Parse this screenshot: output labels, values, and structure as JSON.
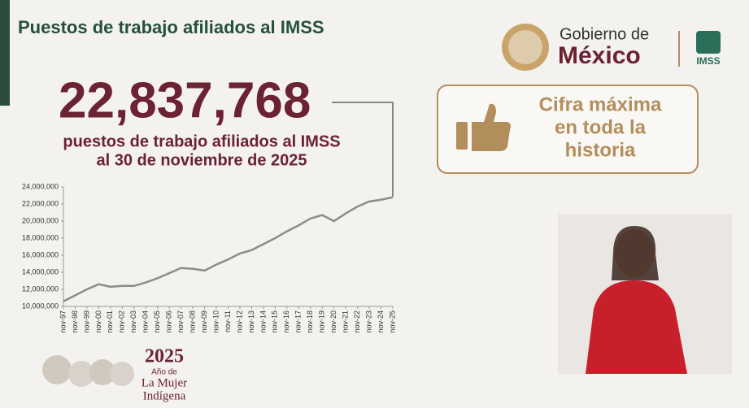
{
  "header": {
    "title": "Puestos de trabajo afiliados al IMSS"
  },
  "headline": {
    "number": "22,837,768",
    "line1": "puestos de trabajo afiliados al IMSS",
    "line2": "al 30 de noviembre de 2025"
  },
  "callout": {
    "line1": "Cifra máxima",
    "line2": "en toda la",
    "line3": "historia"
  },
  "logo": {
    "gobierno": "Gobierno de",
    "mexico": "México",
    "imss": "IMSS"
  },
  "footer": {
    "year": "2025",
    "line1": "Año de",
    "line2": "La Mujer",
    "line3": "Indígena"
  },
  "chart_data": {
    "type": "line",
    "categories": [
      "nov-97",
      "nov-98",
      "nov-99",
      "nov-00",
      "nov-01",
      "nov-02",
      "nov-03",
      "nov-04",
      "nov-05",
      "nov-06",
      "nov-07",
      "nov-08",
      "nov-09",
      "nov-10",
      "nov-11",
      "nov-12",
      "nov-13",
      "nov-14",
      "nov-15",
      "nov-16",
      "nov-17",
      "nov-18",
      "nov-19",
      "nov-20",
      "nov-21",
      "nov-22",
      "nov-23",
      "nov-24",
      "nov-25"
    ],
    "values": [
      10600000,
      11300000,
      12000000,
      12600000,
      12300000,
      12400000,
      12400000,
      12800000,
      13300000,
      13900000,
      14500000,
      14400000,
      14200000,
      14900000,
      15500000,
      16200000,
      16600000,
      17300000,
      18000000,
      18800000,
      19500000,
      20300000,
      20700000,
      20000000,
      20900000,
      21700000,
      22300000,
      22500000,
      22800000
    ],
    "color": "#8c8c8c",
    "ylim": [
      10000000,
      24000000
    ],
    "yticks": [
      {
        "value": 10000000,
        "label": "10,000,000"
      },
      {
        "value": 12000000,
        "label": "12,000,000"
      },
      {
        "value": 14000000,
        "label": "14,000,000"
      },
      {
        "value": 16000000,
        "label": "16,000,000"
      },
      {
        "value": 18000000,
        "label": "18,000,000"
      },
      {
        "value": 20000000,
        "label": "20,000,000"
      },
      {
        "value": 22000000,
        "label": "22,000,000"
      },
      {
        "value": 24000000,
        "label": "24,000,000"
      }
    ]
  }
}
